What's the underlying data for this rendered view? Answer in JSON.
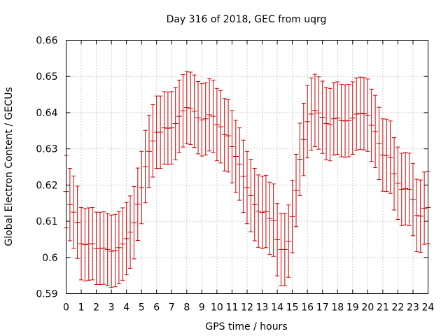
{
  "chart_data": {
    "type": "scatter",
    "title": "Day 316 of 2018, GEC from uqrg",
    "xlabel": "GPS time / hours",
    "ylabel": "Global Electron Content / GECUs",
    "xlim": [
      0,
      24
    ],
    "ylim": [
      0.59,
      0.66
    ],
    "xticks": [
      "0",
      "1",
      "2",
      "3",
      "4",
      "5",
      "6",
      "7",
      "8",
      "9",
      "10",
      "11",
      "12",
      "13",
      "14",
      "15",
      "16",
      "17",
      "18",
      "19",
      "20",
      "21",
      "22",
      "23",
      "24"
    ],
    "yticks": [
      "0.59",
      "0.6",
      "0.61",
      "0.62",
      "0.63",
      "0.64",
      "0.65",
      "0.66"
    ],
    "grid": true,
    "legend": "none",
    "series_color": "#cc0000",
    "error_bar": 0.01,
    "x": [
      0,
      0.25,
      0.5,
      0.75,
      1,
      1.25,
      1.5,
      1.75,
      2,
      2.25,
      2.5,
      2.75,
      3,
      3.25,
      3.5,
      3.75,
      4,
      4.25,
      4.5,
      4.75,
      5,
      5.25,
      5.5,
      5.75,
      6,
      6.25,
      6.5,
      6.75,
      7,
      7.25,
      7.5,
      7.75,
      8,
      8.25,
      8.5,
      8.75,
      9,
      9.25,
      9.5,
      9.75,
      10,
      10.25,
      10.5,
      10.75,
      11,
      11.25,
      11.5,
      11.75,
      12,
      12.25,
      12.5,
      12.75,
      13,
      13.25,
      13.5,
      13.75,
      14,
      14.25,
      14.5,
      14.75,
      15,
      15.25,
      15.5,
      15.75,
      16,
      16.25,
      16.5,
      16.75,
      17,
      17.25,
      17.5,
      17.75,
      18,
      18.25,
      18.5,
      18.75,
      19,
      19.25,
      19.5,
      19.75,
      20,
      20.25,
      20.5,
      20.75,
      21,
      21.25,
      21.5,
      21.75,
      22,
      22.25,
      22.5,
      22.75,
      23,
      23.25,
      23.5,
      23.75,
      24
    ],
    "y": [
      0.6182,
      0.6146,
      0.6125,
      0.6097,
      0.6038,
      0.6035,
      0.6037,
      0.6038,
      0.6025,
      0.6025,
      0.6026,
      0.6022,
      0.6017,
      0.6019,
      0.6027,
      0.6037,
      0.6052,
      0.607,
      0.6096,
      0.6147,
      0.6193,
      0.6251,
      0.6293,
      0.6322,
      0.6346,
      0.6346,
      0.6358,
      0.6357,
      0.6358,
      0.637,
      0.639,
      0.6405,
      0.6414,
      0.6412,
      0.6404,
      0.6386,
      0.638,
      0.6383,
      0.6394,
      0.639,
      0.6367,
      0.6361,
      0.6339,
      0.6336,
      0.6306,
      0.6279,
      0.6258,
      0.6224,
      0.6193,
      0.6171,
      0.6146,
      0.6128,
      0.6124,
      0.6127,
      0.6108,
      0.6103,
      0.6049,
      0.6022,
      0.6022,
      0.6045,
      0.6113,
      0.6185,
      0.6271,
      0.6326,
      0.6375,
      0.6396,
      0.6406,
      0.6399,
      0.6387,
      0.637,
      0.6367,
      0.6383,
      0.6385,
      0.6378,
      0.6377,
      0.6378,
      0.6385,
      0.6396,
      0.6398,
      0.6397,
      0.6393,
      0.6365,
      0.6348,
      0.6315,
      0.6283,
      0.6282,
      0.6277,
      0.6231,
      0.6205,
      0.6188,
      0.619,
      0.6188,
      0.616,
      0.6116,
      0.6114,
      0.6136,
      0.6138
    ]
  }
}
